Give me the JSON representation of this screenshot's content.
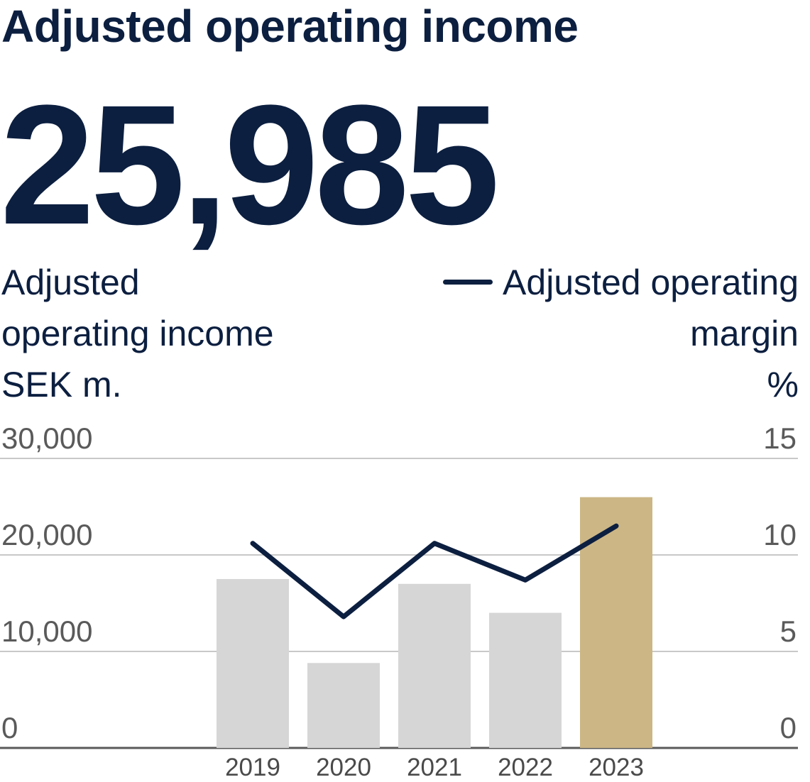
{
  "title": "Adjusted operating income",
  "kpi_value": "25,985",
  "left_axis_label": [
    "Adjusted",
    "operating income",
    "SEK m."
  ],
  "right_axis_label": [
    "Adjusted operating",
    "margin",
    "%"
  ],
  "chart_data": {
    "type": "bar",
    "categories": [
      "2019",
      "2020",
      "2021",
      "2022",
      "2023"
    ],
    "series": [
      {
        "name": "Adjusted operating income",
        "type": "bar",
        "axis": "left",
        "values": [
          17500,
          8800,
          17000,
          14000,
          25985
        ],
        "colors": [
          "#d6d6d6",
          "#d6d6d6",
          "#d6d6d6",
          "#d6d6d6",
          "#ccb685"
        ]
      },
      {
        "name": "Adjusted operating margin",
        "type": "line",
        "axis": "right",
        "color": "#0c1f40",
        "values": [
          10.6,
          6.8,
          10.6,
          8.7,
          11.5
        ]
      }
    ],
    "left_axis": {
      "min": 0,
      "max": 30000,
      "ticks": [
        "0",
        "10,000",
        "20,000",
        "30,000"
      ],
      "tick_values": [
        0,
        10000,
        20000,
        30000
      ]
    },
    "right_axis": {
      "min": 0,
      "max": 15,
      "ticks": [
        "0",
        "5",
        "10",
        "15"
      ],
      "tick_values": [
        0,
        5,
        10,
        15
      ]
    },
    "grid": true
  }
}
